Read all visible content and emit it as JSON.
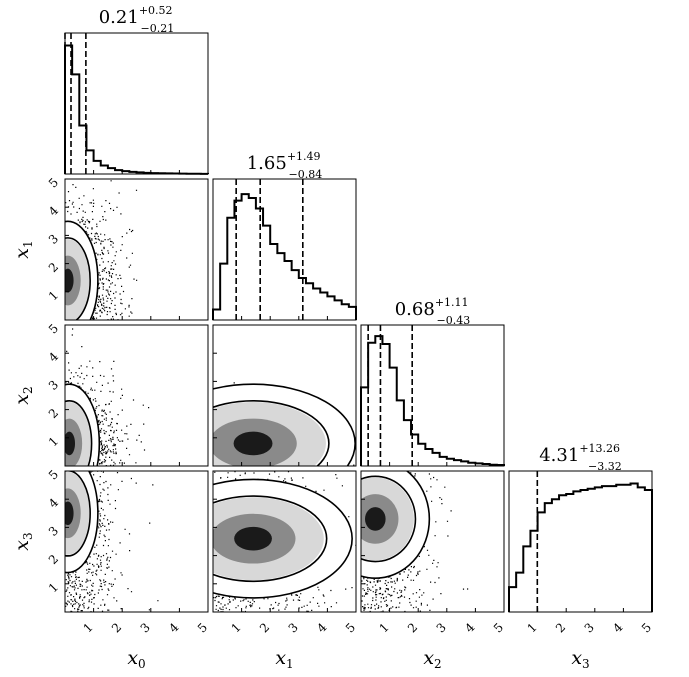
{
  "chart_data": {
    "type": "corner",
    "parameters": [
      {
        "symbol": "x",
        "subscript": "0"
      },
      {
        "symbol": "x",
        "subscript": "1"
      },
      {
        "symbol": "x",
        "subscript": "2"
      },
      {
        "symbol": "x",
        "subscript": "3"
      }
    ],
    "axis_range": [
      0,
      5
    ],
    "tick_values": [
      1,
      2,
      3,
      4,
      5
    ],
    "marginals": [
      {
        "parameter": "x0",
        "median": "0.21",
        "upper": "+0.52",
        "lower": "−0.21",
        "quantile_lines": [
          0.0,
          0.21,
          0.73
        ],
        "bin_edges": [
          0,
          0.25,
          0.5,
          0.75,
          1.0,
          1.25,
          1.5,
          1.75,
          2.0,
          2.25,
          2.5,
          2.75,
          3.0,
          3.25,
          3.5,
          3.75,
          4.0,
          4.25,
          4.5,
          4.75,
          5.0
        ],
        "relative_heights": [
          0.98,
          0.76,
          0.37,
          0.18,
          0.1,
          0.065,
          0.045,
          0.03,
          0.022,
          0.016,
          0.012,
          0.009,
          0.007,
          0.006,
          0.005,
          0.004,
          0.003,
          0.002,
          0.002,
          0.001
        ]
      },
      {
        "parameter": "x1",
        "median": "1.65",
        "upper": "+1.49",
        "lower": "−0.84",
        "quantile_lines": [
          0.81,
          1.65,
          3.14
        ],
        "bin_edges": [
          0,
          0.25,
          0.5,
          0.75,
          1.0,
          1.25,
          1.5,
          1.75,
          2.0,
          2.25,
          2.5,
          2.75,
          3.0,
          3.25,
          3.5,
          3.75,
          4.0,
          4.25,
          4.5,
          4.75,
          5.0
        ],
        "relative_heights": [
          0.08,
          0.43,
          0.78,
          0.91,
          0.96,
          0.93,
          0.85,
          0.72,
          0.58,
          0.51,
          0.45,
          0.38,
          0.32,
          0.28,
          0.24,
          0.21,
          0.18,
          0.15,
          0.12,
          0.1
        ]
      },
      {
        "parameter": "x2",
        "median": "0.68",
        "upper": "+1.11",
        "lower": "−0.43",
        "quantile_lines": [
          0.25,
          0.68,
          1.79
        ],
        "bin_edges": [
          0,
          0.25,
          0.5,
          0.75,
          1.0,
          1.25,
          1.5,
          1.75,
          2.0,
          2.25,
          2.5,
          2.75,
          3.0,
          3.25,
          3.5,
          3.75,
          4.0,
          4.25,
          4.5,
          4.75,
          5.0
        ],
        "relative_heights": [
          0.6,
          0.94,
          0.99,
          0.93,
          0.75,
          0.5,
          0.35,
          0.24,
          0.17,
          0.13,
          0.1,
          0.07,
          0.055,
          0.045,
          0.035,
          0.025,
          0.02,
          0.015,
          0.01,
          0.008
        ]
      },
      {
        "parameter": "x3",
        "median": "4.31",
        "upper": "+13.26",
        "lower": "−3.32",
        "quantile_lines": [
          0.99
        ],
        "bin_edges": [
          0,
          0.25,
          0.5,
          0.75,
          1.0,
          1.25,
          1.5,
          1.75,
          2.0,
          2.25,
          2.5,
          2.75,
          3.0,
          3.25,
          3.5,
          3.75,
          4.0,
          4.25,
          4.5,
          4.75,
          5.0
        ],
        "relative_heights": [
          0.19,
          0.3,
          0.5,
          0.62,
          0.76,
          0.83,
          0.86,
          0.89,
          0.9,
          0.92,
          0.93,
          0.94,
          0.95,
          0.96,
          0.96,
          0.97,
          0.97,
          0.98,
          0.95,
          0.93
        ]
      }
    ],
    "joint_panels": [
      {
        "x": "x0",
        "y": "x1",
        "peak": [
          0.1,
          1.4
        ],
        "spread": [
          0.8,
          1.2
        ],
        "contour_extent": [
          1.0,
          3.6
        ]
      },
      {
        "x": "x0",
        "y": "x2",
        "peak": [
          0.15,
          0.8
        ],
        "spread": [
          0.8,
          1.0
        ],
        "contour_extent": [
          1.0,
          2.1
        ]
      },
      {
        "x": "x1",
        "y": "x2",
        "peak": [
          1.4,
          0.8
        ],
        "spread": [
          1.2,
          0.7
        ],
        "contour_extent": [
          3.4,
          2.1
        ]
      },
      {
        "x": "x0",
        "y": "x3",
        "peak": [
          0.1,
          3.5
        ],
        "spread": [
          0.8,
          2.5
        ],
        "contour_extent": [
          1.0,
          5.0
        ]
      },
      {
        "x": "x1",
        "y": "x3",
        "peak": [
          1.4,
          2.6
        ],
        "spread": [
          1.2,
          2.5
        ],
        "contour_extent": [
          3.3,
          5.0
        ]
      },
      {
        "x": "x2",
        "y": "x3",
        "peak": [
          0.5,
          3.3
        ],
        "spread": [
          0.9,
          2.5
        ],
        "contour_extent": [
          1.8,
          5.0
        ]
      }
    ],
    "colors": {
      "ink": "#000000",
      "background": "#ffffff"
    },
    "grid": false,
    "legend": "none"
  }
}
